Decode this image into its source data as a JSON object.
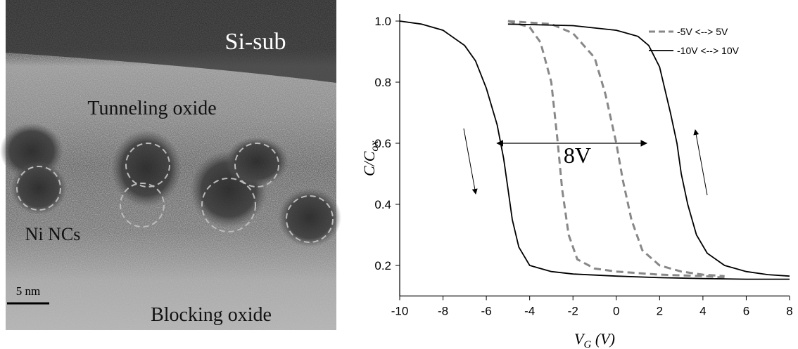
{
  "micrograph": {
    "substrate_label": "Si-sub",
    "tunnel_label": "Tunneling oxide",
    "nc_label": "Ni NCs",
    "block_label": "Blocking oxide",
    "scale_bar": "5 nm"
  },
  "chart_data": {
    "type": "line",
    "xlabel": [
      "V",
      "G",
      " (V)"
    ],
    "ylabel": [
      "C/C",
      "ox"
    ],
    "annotation": "8V",
    "xlim": [
      -10,
      8
    ],
    "xticks": [
      -10,
      -8,
      -6,
      -4,
      -2,
      0,
      2,
      4,
      6,
      8
    ],
    "ylim": [
      0.1,
      1.0
    ],
    "yticks": [
      0.2,
      0.4,
      0.6,
      0.8,
      {
        "value": 1.0,
        "label": "1.0"
      }
    ],
    "legend": "upper right",
    "series": [
      {
        "name": "-5V <--> 5V",
        "color": "#888888",
        "dashed": true,
        "x": [
          -5,
          -4,
          -3.5,
          -3,
          -2.7,
          -2.5,
          -2.2,
          -1.8,
          -1,
          0,
          2,
          4,
          5,
          null,
          -5,
          -3,
          -2,
          -1,
          -0.5,
          0,
          0.3,
          0.7,
          1.2,
          2,
          3,
          4,
          5
        ],
        "values": [
          1.0,
          0.98,
          0.93,
          0.8,
          0.6,
          0.45,
          0.3,
          0.22,
          0.19,
          0.18,
          0.17,
          0.165,
          0.16,
          null,
          1.0,
          0.99,
          0.96,
          0.88,
          0.76,
          0.6,
          0.48,
          0.35,
          0.25,
          0.2,
          0.18,
          0.17,
          0.165
        ]
      },
      {
        "name": "-10V <--> 10V",
        "color": "#000000",
        "dashed": false,
        "x": [
          -10,
          -9,
          -8,
          -7,
          -6.5,
          -6,
          -5.5,
          -5.2,
          -5,
          -4.8,
          -4.5,
          -4,
          -3,
          -2,
          0,
          2,
          4,
          6,
          8,
          null,
          -5,
          -2,
          0,
          1,
          1.5,
          2,
          2.5,
          2.8,
          3,
          3.3,
          3.7,
          4.2,
          5,
          6,
          7,
          8
        ],
        "values": [
          1.0,
          0.99,
          0.97,
          0.92,
          0.87,
          0.78,
          0.66,
          0.55,
          0.45,
          0.35,
          0.26,
          0.2,
          0.18,
          0.172,
          0.165,
          0.16,
          0.157,
          0.155,
          0.155,
          null,
          0.99,
          0.985,
          0.97,
          0.95,
          0.92,
          0.85,
          0.7,
          0.6,
          0.5,
          0.4,
          0.3,
          0.24,
          0.2,
          0.18,
          0.17,
          0.165
        ]
      }
    ]
  }
}
